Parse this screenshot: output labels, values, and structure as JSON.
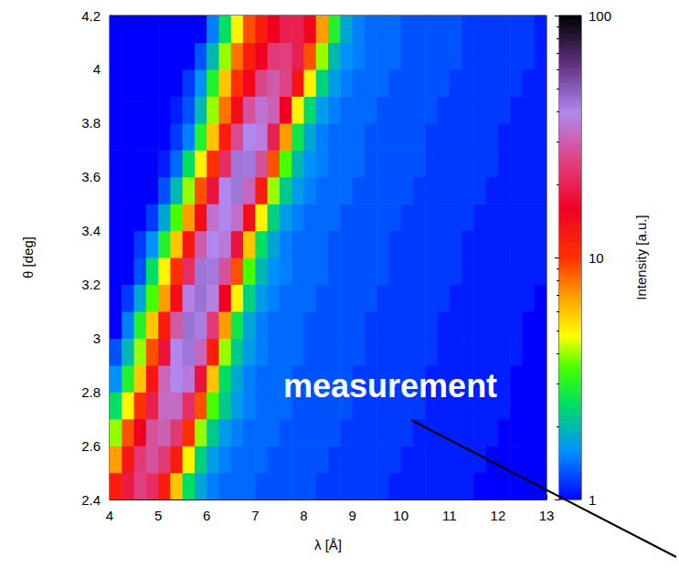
{
  "chart_data": {
    "type": "heatmap",
    "x_label": "λ [Å]",
    "y_label": "θ [deg]",
    "xlim": [
      4,
      13
    ],
    "xticks": [
      4,
      5,
      6,
      7,
      8,
      9,
      10,
      11,
      12,
      13
    ],
    "ylim": [
      2.4,
      4.2
    ],
    "yticks": [
      2.4,
      2.6,
      2.8,
      3,
      3.2,
      3.4,
      3.6,
      3.8,
      4,
      4.2
    ],
    "grid": false,
    "annotation": "measurement",
    "colorbar": {
      "label": "Intensity [a.u.]",
      "range": [
        1,
        100
      ],
      "ticks": [
        1,
        10,
        100
      ],
      "log": true
    },
    "x_bins": [
      4,
      4.25,
      4.5,
      4.75,
      5,
      5.25,
      5.5,
      5.75,
      6,
      6.25,
      6.5,
      6.75,
      7,
      7.25,
      7.5,
      7.75,
      8,
      8.25,
      8.5,
      8.75,
      9,
      9.25,
      9.5,
      9.75,
      10,
      10.25,
      10.5,
      10.75,
      11,
      11.25,
      11.5,
      11.75,
      12,
      12.25,
      12.5,
      12.75,
      13
    ],
    "y_bins": [
      2.4,
      2.5,
      2.6,
      2.7,
      2.8,
      2.9,
      3,
      3.1,
      3.2,
      3.3,
      3.4,
      3.5,
      3.6,
      3.7,
      3.8,
      3.9,
      4,
      4.1,
      4.2
    ],
    "values": [
      [
        12,
        19,
        25,
        22,
        12,
        6,
        2.5,
        1.8,
        1.5,
        1.4,
        1.4,
        1.4,
        1.3,
        1.3,
        1.3,
        1.3,
        1.3,
        1.2,
        1.2,
        1.2,
        1.2,
        1.2,
        1.2,
        1.1,
        1.1,
        1.1,
        1.1,
        1.1,
        1.1,
        1.1,
        1,
        1,
        1,
        1,
        1,
        1
      ],
      [
        7,
        13,
        24,
        28,
        24,
        12,
        5,
        2.3,
        1.7,
        1.5,
        1.4,
        1.4,
        1.4,
        1.3,
        1.3,
        1.3,
        1.3,
        1.3,
        1.2,
        1.2,
        1.2,
        1.2,
        1.2,
        1.2,
        1.1,
        1.1,
        1.1,
        1.1,
        1.1,
        1.1,
        1.1,
        1,
        1,
        1,
        1,
        1
      ],
      [
        4,
        9,
        16,
        28,
        31,
        24,
        10,
        4,
        2.2,
        1.7,
        1.5,
        1.4,
        1.4,
        1.4,
        1.3,
        1.3,
        1.3,
        1.3,
        1.3,
        1.2,
        1.2,
        1.2,
        1.2,
        1.2,
        1.2,
        1.1,
        1.1,
        1.1,
        1.1,
        1.1,
        1.1,
        1.1,
        1,
        1,
        1,
        1
      ],
      [
        2.5,
        5,
        10,
        20,
        33,
        33,
        22,
        9,
        3.5,
        2.2,
        1.7,
        1.5,
        1.4,
        1.4,
        1.4,
        1.3,
        1.3,
        1.3,
        1.3,
        1.3,
        1.2,
        1.2,
        1.2,
        1.2,
        1.2,
        1.2,
        1.1,
        1.1,
        1.1,
        1.1,
        1.1,
        1.1,
        1.1,
        1,
        1,
        1
      ],
      [
        1.6,
        3,
        6,
        13,
        32,
        40,
        36,
        18,
        6,
        2.5,
        1.8,
        1.5,
        1.4,
        1.4,
        1.4,
        1.3,
        1.3,
        1.3,
        1.3,
        1.3,
        1.2,
        1.2,
        1.2,
        1.2,
        1.2,
        1.2,
        1.1,
        1.1,
        1.1,
        1.1,
        1.1,
        1.1,
        1.1,
        1,
        1,
        1
      ],
      [
        1.3,
        2,
        4,
        9,
        18,
        40,
        44,
        32,
        12,
        4,
        2.2,
        1.7,
        1.5,
        1.4,
        1.4,
        1.4,
        1.3,
        1.3,
        1.3,
        1.3,
        1.3,
        1.2,
        1.2,
        1.2,
        1.2,
        1.2,
        1.2,
        1.1,
        1.1,
        1.1,
        1.1,
        1.1,
        1.1,
        1.1,
        1,
        1
      ],
      [
        1,
        1.5,
        3,
        6,
        12,
        30,
        45,
        42,
        24,
        7,
        2.7,
        1.8,
        1.5,
        1.4,
        1.4,
        1.4,
        1.3,
        1.3,
        1.3,
        1.3,
        1.3,
        1.2,
        1.2,
        1.2,
        1.2,
        1.2,
        1.2,
        1.1,
        1.1,
        1.1,
        1.1,
        1.1,
        1.1,
        1.1,
        1,
        1
      ],
      [
        1,
        1.2,
        1.8,
        3.5,
        7,
        14,
        38,
        45,
        38,
        16,
        5,
        2.3,
        1.7,
        1.5,
        1.4,
        1.4,
        1.4,
        1.3,
        1.3,
        1.3,
        1.3,
        1.3,
        1.2,
        1.2,
        1.2,
        1.2,
        1.2,
        1.2,
        1.1,
        1.1,
        1.1,
        1.1,
        1.1,
        1.1,
        1.1,
        1
      ],
      [
        1,
        1,
        1.3,
        2.5,
        5,
        10,
        22,
        44,
        43,
        28,
        9,
        3.5,
        2,
        1.6,
        1.5,
        1.4,
        1.4,
        1.4,
        1.3,
        1.3,
        1.3,
        1.3,
        1.3,
        1.2,
        1.2,
        1.2,
        1.2,
        1.2,
        1.2,
        1.1,
        1.1,
        1.1,
        1.1,
        1.1,
        1.1,
        1.1
      ],
      [
        1,
        1,
        1.2,
        1.6,
        3,
        6,
        13,
        30,
        40,
        36,
        18,
        6,
        2.5,
        1.8,
        1.5,
        1.4,
        1.4,
        1.4,
        1.3,
        1.3,
        1.3,
        1.3,
        1.3,
        1.2,
        1.2,
        1.2,
        1.2,
        1.2,
        1.2,
        1.1,
        1.1,
        1.1,
        1.1,
        1.1,
        1.1,
        1.1
      ],
      [
        1,
        1,
        1,
        1.2,
        1.8,
        3.5,
        7,
        14,
        34,
        40,
        34,
        14,
        5,
        2.3,
        1.7,
        1.5,
        1.4,
        1.4,
        1.4,
        1.3,
        1.3,
        1.3,
        1.3,
        1.3,
        1.2,
        1.2,
        1.2,
        1.2,
        1.2,
        1.2,
        1.1,
        1.1,
        1.1,
        1.1,
        1.1,
        1.1
      ],
      [
        1,
        1,
        1,
        1,
        1.3,
        2,
        4,
        9,
        18,
        40,
        44,
        32,
        12,
        4,
        2.2,
        1.7,
        1.5,
        1.4,
        1.4,
        1.4,
        1.3,
        1.3,
        1.3,
        1.3,
        1.3,
        1.2,
        1.2,
        1.2,
        1.2,
        1.2,
        1.2,
        1.1,
        1.1,
        1.1,
        1.1,
        1.1
      ],
      [
        1,
        1,
        1,
        1,
        1.1,
        1.4,
        2.5,
        5,
        10,
        22,
        44,
        43,
        28,
        9,
        3.5,
        2,
        1.6,
        1.5,
        1.4,
        1.4,
        1.4,
        1.3,
        1.3,
        1.3,
        1.3,
        1.3,
        1.2,
        1.2,
        1.2,
        1.2,
        1.2,
        1.2,
        1.1,
        1.1,
        1.1,
        1.1
      ],
      [
        1,
        1,
        1,
        1,
        1,
        1.2,
        1.5,
        3,
        6,
        12,
        27,
        40,
        37,
        20,
        7,
        2.7,
        1.8,
        1.5,
        1.4,
        1.4,
        1.4,
        1.3,
        1.3,
        1.3,
        1.3,
        1.3,
        1.2,
        1.2,
        1.2,
        1.2,
        1.2,
        1.2,
        1.1,
        1.1,
        1.1,
        1.1
      ],
      [
        1,
        1,
        1,
        1,
        1,
        1.1,
        1.3,
        2,
        4,
        8,
        14,
        28,
        35,
        31,
        16,
        5,
        2.4,
        1.7,
        1.5,
        1.4,
        1.4,
        1.4,
        1.3,
        1.3,
        1.3,
        1.3,
        1.3,
        1.2,
        1.2,
        1.2,
        1.2,
        1.2,
        1.2,
        1.1,
        1.1,
        1.1
      ],
      [
        1,
        1,
        1,
        1,
        1,
        1,
        1.2,
        1.6,
        3,
        6,
        10,
        15,
        26,
        30,
        26,
        13,
        5,
        2.3,
        1.7,
        1.5,
        1.4,
        1.4,
        1.4,
        1.3,
        1.3,
        1.3,
        1.3,
        1.3,
        1.2,
        1.2,
        1.2,
        1.2,
        1.2,
        1.2,
        1.1,
        1.1
      ],
      [
        1,
        1,
        1,
        1,
        1,
        1,
        1,
        1.3,
        2,
        4,
        8,
        12,
        16,
        24,
        25,
        20,
        9,
        4,
        2,
        1.6,
        1.5,
        1.4,
        1.4,
        1.4,
        1.3,
        1.3,
        1.3,
        1.3,
        1.3,
        1.2,
        1.2,
        1.2,
        1.2,
        1.2,
        1.2,
        1.1
      ],
      [
        1,
        1,
        1,
        1,
        1,
        1,
        1,
        1,
        1.5,
        2.5,
        5,
        9,
        12,
        16,
        20,
        20,
        15,
        7,
        3,
        1.8,
        1.5,
        1.4,
        1.4,
        1.4,
        1.3,
        1.3,
        1.3,
        1.3,
        1.3,
        1.2,
        1.2,
        1.2,
        1.2,
        1.2,
        1.2,
        1.1
      ]
    ]
  }
}
